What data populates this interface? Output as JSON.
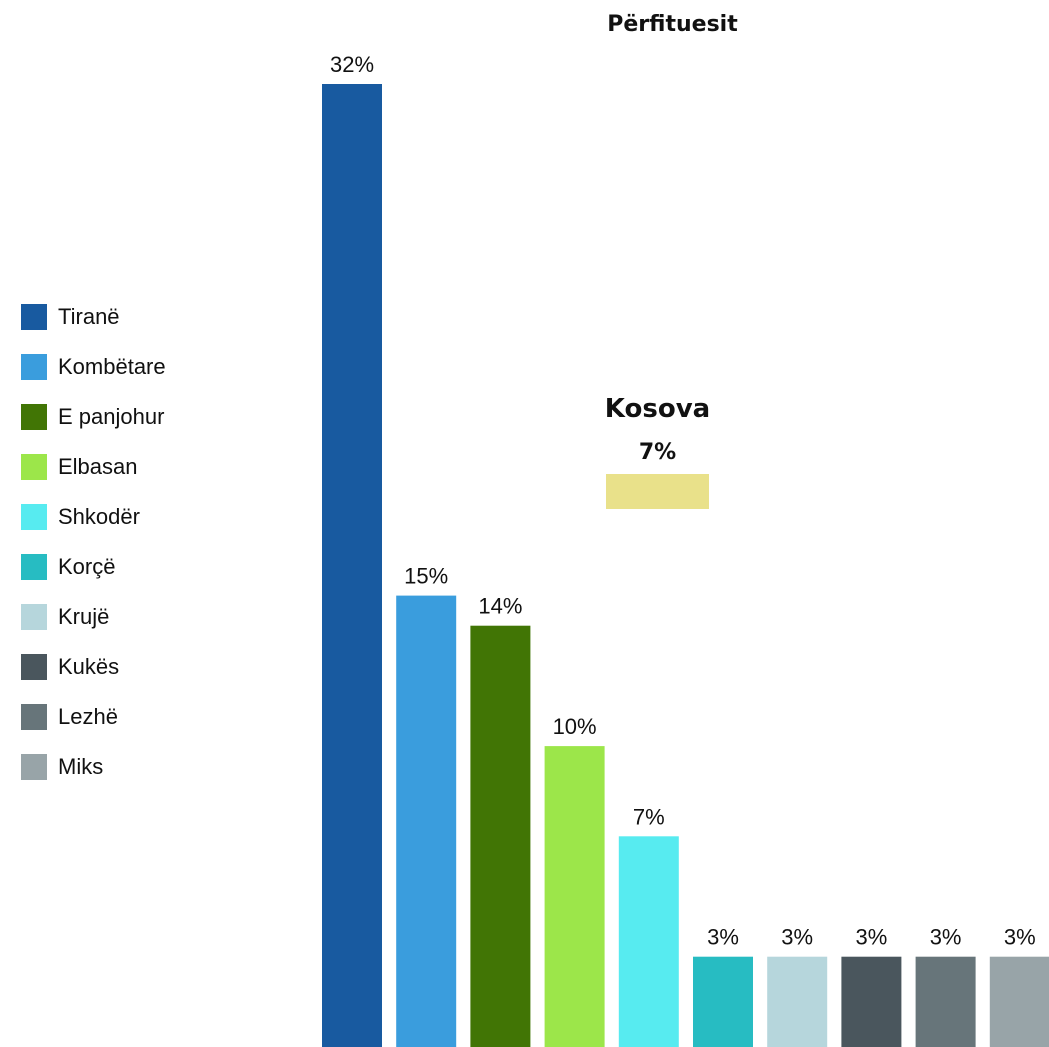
{
  "chart_data": {
    "type": "bar",
    "title": "Përfituesit",
    "categories": [
      "Tiranë",
      "Kombëtare",
      "E panjohur",
      "Elbasan",
      "Shkodër",
      "Korçë",
      "Krujë",
      "Kukës",
      "Lezhë",
      "Miks"
    ],
    "values": [
      32,
      15,
      14,
      10,
      7,
      3,
      3,
      3,
      3,
      3
    ],
    "value_labels": [
      "32%",
      "15%",
      "14%",
      "10%",
      "7%",
      "3%",
      "3%",
      "3%",
      "3%",
      "3%"
    ],
    "colors": [
      "#185aa0",
      "#3a9ddd",
      "#417505",
      "#9ce64a",
      "#57ebf0",
      "#27bcc2",
      "#b6d6dc",
      "#4a565d",
      "#67757a",
      "#98a4a8"
    ],
    "legend_position": "left",
    "grid": false,
    "ylim": [
      0,
      32
    ],
    "annotation": {
      "title": "Kosova",
      "value": 7,
      "value_label": "7%",
      "color": "#e9e18a"
    }
  }
}
